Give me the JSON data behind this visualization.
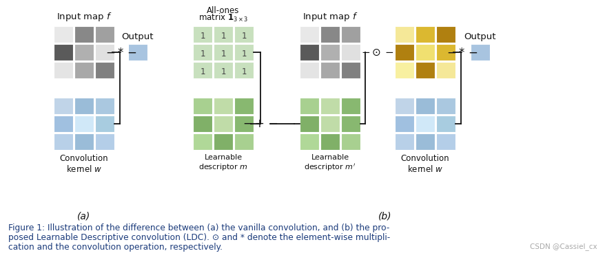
{
  "fig_width": 8.79,
  "fig_height": 3.97,
  "dpi": 100,
  "bg_color": "#ffffff",
  "input_map_a": [
    [
      "#e8e8e8",
      "#888888",
      "#a0a0a0"
    ],
    [
      "#5a5a5a",
      "#b0b0b0",
      "#e0e0e0"
    ],
    [
      "#e4e4e4",
      "#a8a8a8",
      "#808080"
    ]
  ],
  "kernel_a": [
    [
      "#c0d4e8",
      "#9abcd8",
      "#aac8e0"
    ],
    [
      "#a0c0e0",
      "#d0e8f8",
      "#a8cce0"
    ],
    [
      "#b8d0e8",
      "#9abcd8",
      "#b4cee8"
    ]
  ],
  "allones": [
    [
      "#c8e0be",
      "#c8e0be",
      "#c8e0be"
    ],
    [
      "#c8e0be",
      "#c8e0be",
      "#c8e0be"
    ],
    [
      "#c8e0be",
      "#c8e0be",
      "#c8e0be"
    ]
  ],
  "learnable_m": [
    [
      "#a8d090",
      "#c0dca8",
      "#88b870"
    ],
    [
      "#80b068",
      "#c0dca8",
      "#88b870"
    ],
    [
      "#b0d898",
      "#80b068",
      "#a8d090"
    ]
  ],
  "input_map_b": [
    [
      "#e8e8e8",
      "#888888",
      "#a0a0a0"
    ],
    [
      "#5a5a5a",
      "#b0b0b0",
      "#e0e0e0"
    ],
    [
      "#e4e4e4",
      "#a8a8a8",
      "#808080"
    ]
  ],
  "learnable_mp": [
    [
      "#a8d090",
      "#c0dca8",
      "#88b870"
    ],
    [
      "#80b068",
      "#c0dca8",
      "#88b870"
    ],
    [
      "#b0d898",
      "#80b068",
      "#a8d090"
    ]
  ],
  "result_b": [
    [
      "#f5e898",
      "#dbb830",
      "#b08010"
    ],
    [
      "#b08010",
      "#f0e070",
      "#dbb830"
    ],
    [
      "#f8f0a0",
      "#b08010",
      "#f5e898"
    ]
  ],
  "kernel_b": [
    [
      "#c0d4e8",
      "#9abcd8",
      "#aac8e0"
    ],
    [
      "#a0c0e0",
      "#d0e8f8",
      "#a8cce0"
    ],
    [
      "#b8d0e8",
      "#9abcd8",
      "#b4cee8"
    ]
  ],
  "output_color": "#a8c4e0",
  "text_dark": "#111111",
  "text_blue": "#1a3a7a",
  "text_gray": "#aaaaaa",
  "caption_line1": "Figure 1: Illustration of the difference between (a) the vanilla convolution, and (b) the pro-",
  "caption_line2": "posed Learnable Descriptive convolution (LDC). ⊙ and * denote the element-wise multipli-",
  "caption_line3": "cation and the convolution operation, respectively.",
  "watermark": "CSDN @Cassiel_cx"
}
